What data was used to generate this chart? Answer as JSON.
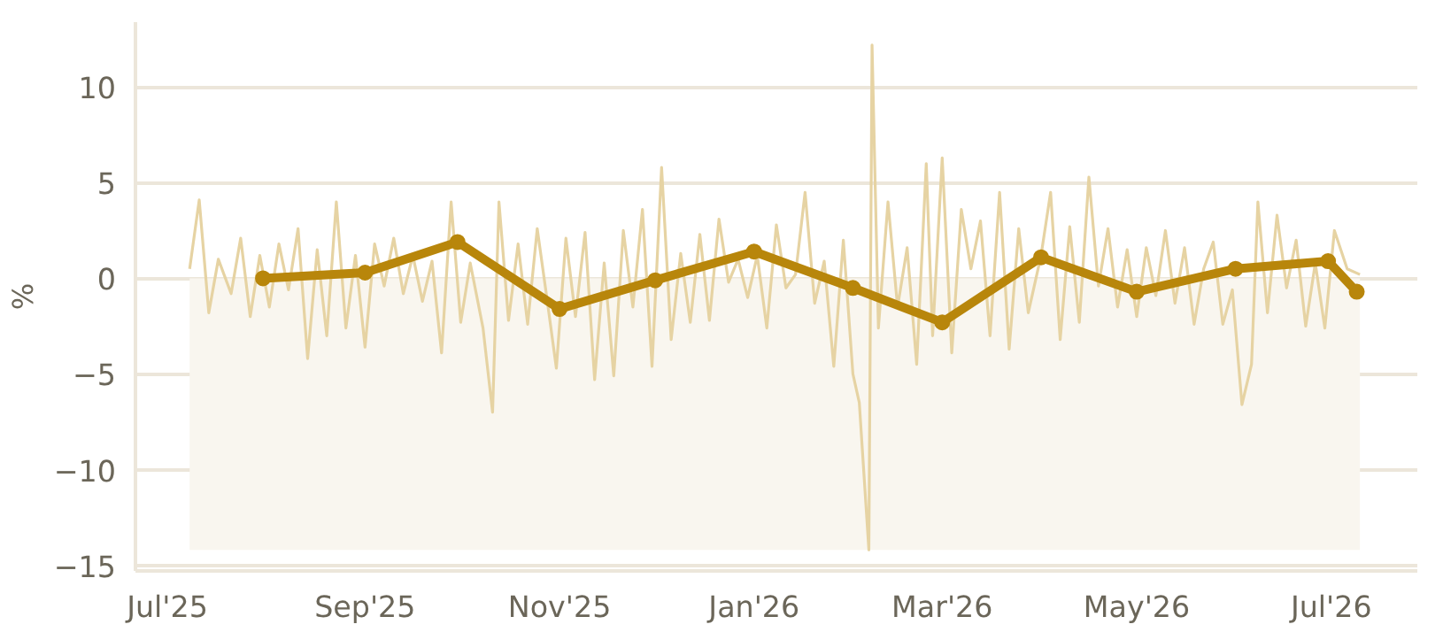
{
  "chart_data": {
    "type": "line",
    "ylabel": "%",
    "xlim": [
      "2025-06-21",
      "2026-07-28"
    ],
    "ylim": [
      -15.3,
      13.4
    ],
    "xticks": [
      {
        "value": "2025-07-01",
        "label": "Jul'25"
      },
      {
        "value": "2025-09-01",
        "label": "Sep'25"
      },
      {
        "value": "2025-11-01",
        "label": "Nov'25"
      },
      {
        "value": "2026-01-01",
        "label": "Jan'26"
      },
      {
        "value": "2026-03-01",
        "label": "Mar'26"
      },
      {
        "value": "2026-05-01",
        "label": "May'26"
      },
      {
        "value": "2026-07-01",
        "label": "Jul'26"
      }
    ],
    "yticks": [
      {
        "value": -15,
        "label": "−15"
      },
      {
        "value": -10,
        "label": "−10"
      },
      {
        "value": -5,
        "label": "−5"
      },
      0,
      5,
      10
    ],
    "grid": "y",
    "bands": [
      {
        "axis": "y",
        "from": -14.2,
        "to": 0,
        "color": "#f9f6ef"
      }
    ],
    "series": [
      {
        "color": "#e6d3a3",
        "marker": "none",
        "x": [
          "2025-07-08",
          "2025-07-11",
          "2025-07-14",
          "2025-07-17",
          "2025-07-21",
          "2025-07-24",
          "2025-07-27",
          "2025-07-30",
          "2025-08-02",
          "2025-08-05",
          "2025-08-08",
          "2025-08-11",
          "2025-08-14",
          "2025-08-17",
          "2025-08-20",
          "2025-08-23",
          "2025-08-26",
          "2025-08-29",
          "2025-09-01",
          "2025-09-04",
          "2025-09-07",
          "2025-09-10",
          "2025-09-13",
          "2025-09-16",
          "2025-09-19",
          "2025-09-22",
          "2025-09-25",
          "2025-09-28",
          "2025-10-01",
          "2025-10-04",
          "2025-10-08",
          "2025-10-11",
          "2025-10-13",
          "2025-10-16",
          "2025-10-19",
          "2025-10-22",
          "2025-10-25",
          "2025-10-28",
          "2025-10-31",
          "2025-11-03",
          "2025-11-06",
          "2025-11-09",
          "2025-11-12",
          "2025-11-15",
          "2025-11-18",
          "2025-11-21",
          "2025-11-24",
          "2025-11-27",
          "2025-11-30",
          "2025-12-03",
          "2025-12-06",
          "2025-12-09",
          "2025-12-12",
          "2025-12-15",
          "2025-12-18",
          "2025-12-21",
          "2025-12-24",
          "2025-12-27",
          "2025-12-30",
          "2026-01-02",
          "2026-01-05",
          "2026-01-08",
          "2026-01-11",
          "2026-01-14",
          "2026-01-17",
          "2026-01-20",
          "2026-01-23",
          "2026-01-26",
          "2026-01-29",
          "2026-02-01",
          "2026-02-03",
          "2026-02-06",
          "2026-02-07",
          "2026-02-09",
          "2026-02-12",
          "2026-02-15",
          "2026-02-18",
          "2026-02-21",
          "2026-02-24",
          "2026-02-26",
          "2026-03-01",
          "2026-03-04",
          "2026-03-07",
          "2026-03-10",
          "2026-03-13",
          "2026-03-16",
          "2026-03-19",
          "2026-03-22",
          "2026-03-25",
          "2026-03-28",
          "2026-04-01",
          "2026-04-04",
          "2026-04-07",
          "2026-04-10",
          "2026-04-13",
          "2026-04-16",
          "2026-04-19",
          "2026-04-22",
          "2026-04-25",
          "2026-04-28",
          "2026-05-01",
          "2026-05-04",
          "2026-05-07",
          "2026-05-10",
          "2026-05-13",
          "2026-05-16",
          "2026-05-19",
          "2026-05-22",
          "2026-05-25",
          "2026-05-28",
          "2026-05-31",
          "2026-06-03",
          "2026-06-06",
          "2026-06-08",
          "2026-06-11",
          "2026-06-14",
          "2026-06-17",
          "2026-06-20",
          "2026-06-23",
          "2026-06-26",
          "2026-06-29",
          "2026-07-02",
          "2026-07-06",
          "2026-07-10"
        ],
        "values": [
          0.5,
          4.1,
          -1.8,
          1.0,
          -0.8,
          2.1,
          -2.0,
          1.2,
          -1.5,
          1.8,
          -0.6,
          2.6,
          -4.2,
          1.5,
          -3.0,
          4.0,
          -2.6,
          1.2,
          -3.6,
          1.8,
          -0.4,
          2.1,
          -0.8,
          1.2,
          -1.2,
          0.9,
          -3.9,
          4.0,
          -2.3,
          0.8,
          -2.6,
          -7.0,
          4.0,
          -2.2,
          1.8,
          -2.4,
          2.6,
          -1.0,
          -4.7,
          2.1,
          -2.0,
          2.4,
          -5.3,
          0.8,
          -5.1,
          2.5,
          -1.5,
          3.6,
          -4.6,
          5.8,
          -3.2,
          1.3,
          -2.3,
          2.3,
          -2.2,
          3.1,
          -0.2,
          1.0,
          -1.0,
          1.2,
          -2.6,
          2.8,
          -0.5,
          0.2,
          4.5,
          -1.3,
          0.9,
          -4.6,
          2.0,
          -5.0,
          -6.5,
          -14.2,
          12.2,
          -2.6,
          4.0,
          -1.5,
          1.6,
          -4.5,
          6.0,
          -3.0,
          6.3,
          -3.9,
          3.6,
          0.5,
          3.0,
          -3.0,
          4.5,
          -3.7,
          2.6,
          -1.8,
          1.2,
          4.5,
          -3.2,
          2.7,
          -2.3,
          5.3,
          -0.4,
          2.6,
          -1.5,
          1.5,
          -2.0,
          1.6,
          -0.9,
          2.5,
          -1.3,
          1.6,
          -2.4,
          0.5,
          1.9,
          -2.4,
          -0.6,
          -6.6,
          -4.5,
          4.0,
          -1.8,
          3.3,
          -0.5,
          2.0,
          -2.5,
          0.8,
          -2.6,
          2.5,
          0.5,
          0.2
        ]
      },
      {
        "color": "#b8860b",
        "marker": "circle",
        "x": [
          "2025-07-31",
          "2025-09-01",
          "2025-09-30",
          "2025-11-01",
          "2025-12-01",
          "2026-01-01",
          "2026-02-01",
          "2026-03-01",
          "2026-04-01",
          "2026-05-01",
          "2026-06-01",
          "2026-06-30",
          "2026-07-09"
        ],
        "values": [
          0.0,
          0.3,
          1.9,
          -1.6,
          -0.1,
          1.4,
          -0.5,
          -2.3,
          1.1,
          -0.7,
          0.5,
          0.9,
          -0.7
        ]
      }
    ]
  }
}
